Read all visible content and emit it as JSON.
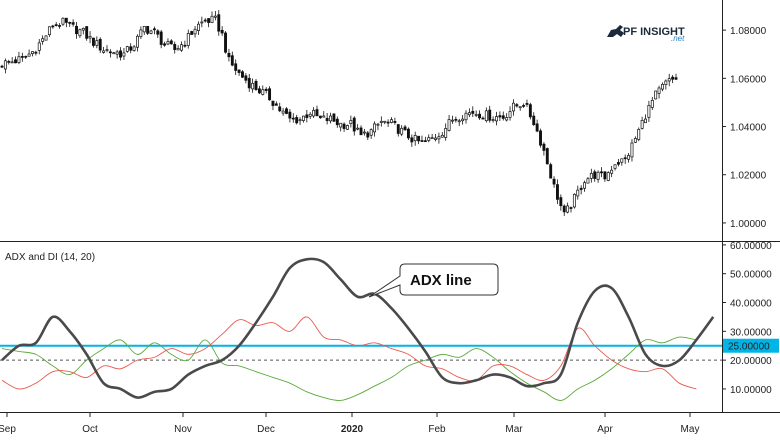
{
  "logo": {
    "brand": "PF INSIGHT",
    "sub": ".net"
  },
  "chart_data": [
    {
      "type": "candlestick",
      "xlabel": "",
      "ylabel": "",
      "ylim": [
        0.9925,
        1.0925
      ],
      "y_ticks": [
        "1.08000",
        "1.06000",
        "1.04000",
        "1.02000",
        "1.00000"
      ],
      "x_ticks": [
        "Sep",
        "Oct",
        "Nov",
        "Dec",
        "2020",
        "Feb",
        "Mar",
        "Apr",
        "May"
      ],
      "grid": false,
      "close_series": [
        [
          0,
          1.066
        ],
        [
          3,
          1.067
        ],
        [
          6,
          1.068
        ],
        [
          9,
          1.071
        ],
        [
          12,
          1.076
        ],
        [
          15,
          1.082
        ],
        [
          18,
          1.083
        ],
        [
          21,
          1.081
        ],
        [
          24,
          1.079
        ],
        [
          27,
          1.075
        ],
        [
          30,
          1.072
        ],
        [
          33,
          1.071
        ],
        [
          36,
          1.07
        ],
        [
          39,
          1.074
        ],
        [
          42,
          1.081
        ],
        [
          45,
          1.079
        ],
        [
          48,
          1.074
        ],
        [
          51,
          1.072
        ],
        [
          54,
          1.075
        ],
        [
          57,
          1.081
        ],
        [
          60,
          1.084
        ],
        [
          63,
          1.084
        ],
        [
          65,
          1.078
        ],
        [
          67,
          1.067
        ],
        [
          70,
          1.062
        ],
        [
          73,
          1.058
        ],
        [
          76,
          1.055
        ],
        [
          79,
          1.052
        ],
        [
          82,
          1.047
        ],
        [
          85,
          1.043
        ],
        [
          88,
          1.043
        ],
        [
          91,
          1.046
        ],
        [
          94,
          1.043
        ],
        [
          97,
          1.043
        ],
        [
          100,
          1.041
        ],
        [
          103,
          1.041
        ],
        [
          106,
          1.036
        ],
        [
          109,
          1.038
        ],
        [
          112,
          1.042
        ],
        [
          115,
          1.041
        ],
        [
          118,
          1.038
        ],
        [
          121,
          1.035
        ],
        [
          124,
          1.033
        ],
        [
          127,
          1.035
        ],
        [
          130,
          1.038
        ],
        [
          133,
          1.043
        ],
        [
          136,
          1.045
        ],
        [
          139,
          1.046
        ],
        [
          142,
          1.045
        ],
        [
          145,
          1.044
        ],
        [
          148,
          1.044
        ],
        [
          151,
          1.048
        ],
        [
          154,
          1.05
        ],
        [
          157,
          1.042
        ],
        [
          160,
          1.03
        ],
        [
          163,
          1.015
        ],
        [
          166,
          1.003
        ],
        [
          169,
          1.01
        ],
        [
          172,
          1.018
        ],
        [
          175,
          1.02
        ],
        [
          178,
          1.019
        ],
        [
          181,
          1.025
        ],
        [
          184,
          1.026
        ],
        [
          187,
          1.035
        ],
        [
          190,
          1.045
        ],
        [
          193,
          1.053
        ],
        [
          196,
          1.058
        ],
        [
          199,
          1.06
        ]
      ]
    },
    {
      "type": "line",
      "title": "ADX and DI (14, 20)",
      "ylim": [
        2,
        61
      ],
      "y_ticks": [
        "60.00000",
        "50.00000",
        "40.00000",
        "30.00000",
        "20.00000",
        "10.00000"
      ],
      "reference_lines": [
        {
          "value": 25,
          "label": "25.00000",
          "style": "solid",
          "color": "#00b4e6"
        },
        {
          "value": 20,
          "style": "dashed",
          "color": "#555555"
        }
      ],
      "annotation": "ADX line",
      "colors": {
        "adx": "#4a4a4a",
        "plus_di": "#5aaa3c",
        "minus_di": "#e85a50"
      },
      "series": [
        {
          "key": "adx",
          "points": [
            [
              0,
              20
            ],
            [
              5,
              25
            ],
            [
              10,
              26
            ],
            [
              15,
              35
            ],
            [
              20,
              30
            ],
            [
              25,
              22
            ],
            [
              30,
              12
            ],
            [
              35,
              10
            ],
            [
              40,
              7
            ],
            [
              45,
              9
            ],
            [
              50,
              10
            ],
            [
              55,
              15
            ],
            [
              60,
              18
            ],
            [
              65,
              20
            ],
            [
              70,
              25
            ],
            [
              75,
              33
            ],
            [
              80,
              42
            ],
            [
              85,
              52
            ],
            [
              90,
              55
            ],
            [
              95,
              54
            ],
            [
              100,
              48
            ],
            [
              105,
              42
            ],
            [
              110,
              43
            ],
            [
              115,
              38
            ],
            [
              120,
              31
            ],
            [
              125,
              23
            ],
            [
              130,
              14
            ],
            [
              135,
              12
            ],
            [
              140,
              13
            ],
            [
              145,
              15
            ],
            [
              150,
              14
            ],
            [
              155,
              11
            ],
            [
              160,
              12
            ],
            [
              165,
              15
            ],
            [
              170,
              33
            ],
            [
              175,
              44
            ],
            [
              180,
              45
            ],
            [
              185,
              35
            ],
            [
              190,
              22
            ],
            [
              195,
              18
            ],
            [
              200,
              20
            ],
            [
              205,
              27
            ],
            [
              210,
              35
            ]
          ]
        },
        {
          "key": "plus_di",
          "points": [
            [
              0,
              24
            ],
            [
              5,
              23
            ],
            [
              10,
              22
            ],
            [
              15,
              18
            ],
            [
              20,
              15
            ],
            [
              25,
              20
            ],
            [
              30,
              24
            ],
            [
              35,
              27
            ],
            [
              40,
              22
            ],
            [
              45,
              26
            ],
            [
              50,
              22
            ],
            [
              55,
              20
            ],
            [
              60,
              27
            ],
            [
              65,
              19
            ],
            [
              70,
              18
            ],
            [
              75,
              16
            ],
            [
              80,
              14
            ],
            [
              85,
              12
            ],
            [
              90,
              9
            ],
            [
              95,
              7
            ],
            [
              100,
              6
            ],
            [
              105,
              8
            ],
            [
              110,
              11
            ],
            [
              115,
              14
            ],
            [
              120,
              18
            ],
            [
              125,
              20
            ],
            [
              130,
              22
            ],
            [
              135,
              21
            ],
            [
              140,
              24
            ],
            [
              145,
              21
            ],
            [
              150,
              16
            ],
            [
              155,
              12
            ],
            [
              160,
              9
            ],
            [
              165,
              6
            ],
            [
              170,
              10
            ],
            [
              175,
              13
            ],
            [
              180,
              17
            ],
            [
              185,
              22
            ],
            [
              190,
              27
            ],
            [
              195,
              26
            ],
            [
              200,
              28
            ],
            [
              205,
              27
            ]
          ]
        },
        {
          "key": "minus_di",
          "points": [
            [
              0,
              13
            ],
            [
              5,
              10
            ],
            [
              10,
              12
            ],
            [
              15,
              16
            ],
            [
              20,
              16
            ],
            [
              25,
              14
            ],
            [
              30,
              18
            ],
            [
              35,
              17
            ],
            [
              40,
              20
            ],
            [
              45,
              21
            ],
            [
              50,
              24
            ],
            [
              55,
              22
            ],
            [
              60,
              24
            ],
            [
              65,
              29
            ],
            [
              70,
              34
            ],
            [
              75,
              32
            ],
            [
              80,
              33
            ],
            [
              85,
              30
            ],
            [
              90,
              35
            ],
            [
              95,
              28
            ],
            [
              100,
              27
            ],
            [
              105,
              25
            ],
            [
              110,
              26
            ],
            [
              115,
              24
            ],
            [
              120,
              22
            ],
            [
              125,
              18
            ],
            [
              130,
              17
            ],
            [
              135,
              14
            ],
            [
              140,
              13
            ],
            [
              145,
              18
            ],
            [
              150,
              18
            ],
            [
              155,
              15
            ],
            [
              160,
              13
            ],
            [
              165,
              18
            ],
            [
              170,
              31
            ],
            [
              175,
              25
            ],
            [
              180,
              20
            ],
            [
              185,
              17
            ],
            [
              190,
              16
            ],
            [
              195,
              17
            ],
            [
              200,
              12
            ],
            [
              205,
              10
            ]
          ]
        }
      ]
    }
  ]
}
